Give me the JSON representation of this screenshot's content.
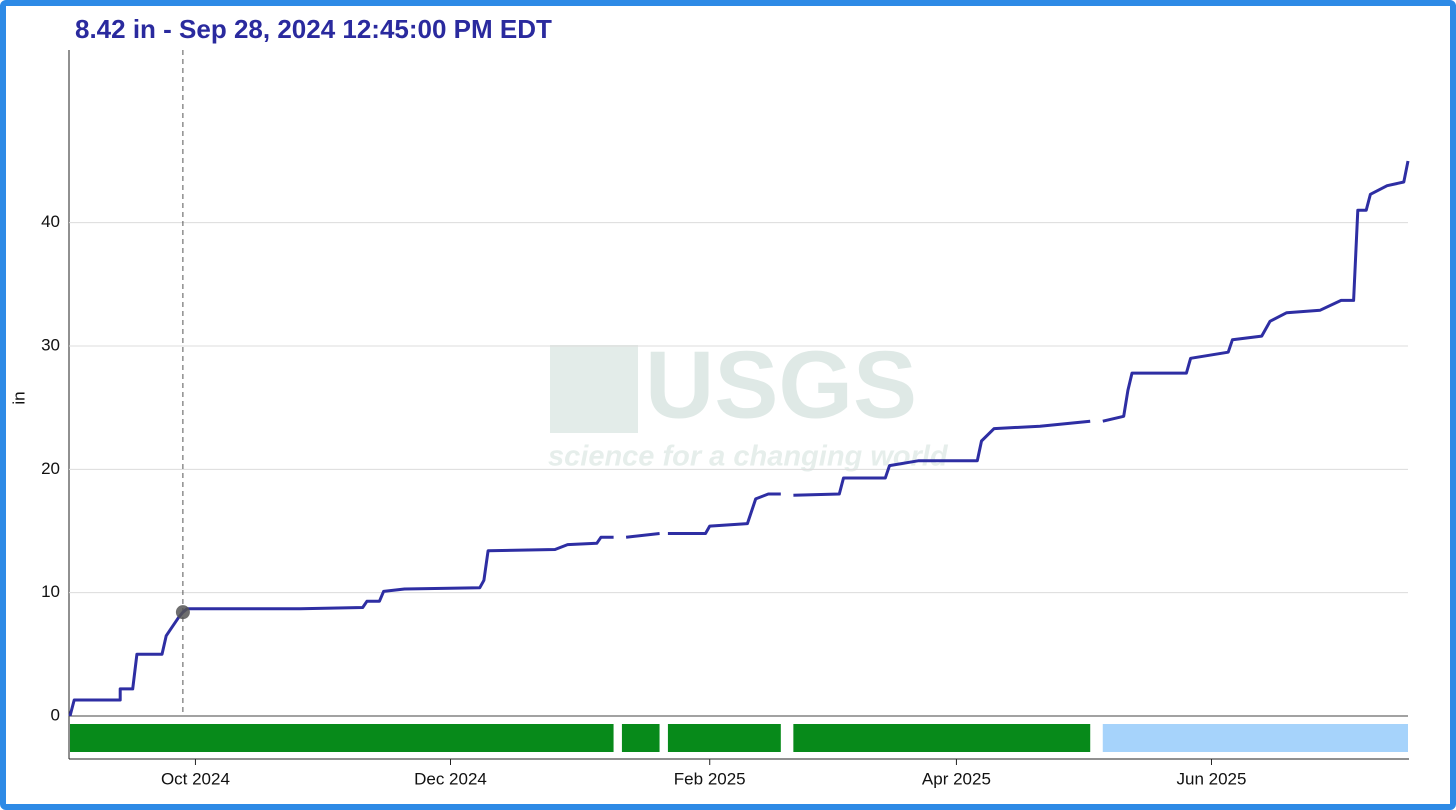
{
  "chart_data": {
    "type": "line",
    "title": "8.42 in - Sep 28, 2024 12:45:00 PM EDT",
    "y_label": "in",
    "watermark": {
      "logo": "USGS",
      "tagline": "science for a changing world"
    },
    "xlim": [
      "2024-09-01",
      "2025-07-18"
    ],
    "xticks": [
      {
        "value": "2024-10-01",
        "label": "Oct 2024"
      },
      {
        "value": "2024-12-01",
        "label": "Dec 2024"
      },
      {
        "value": "2025-02-01",
        "label": "Feb 2025"
      },
      {
        "value": "2025-04-01",
        "label": "Apr 2025"
      },
      {
        "value": "2025-06-01",
        "label": "Jun 2025"
      }
    ],
    "ylim": [
      0,
      54
    ],
    "yticks": [
      0,
      10,
      20,
      30,
      40
    ],
    "grid": true,
    "series": [
      {
        "color": "#2e2ea3",
        "x": [
          "2024-09-01",
          "2024-09-02",
          "2024-09-13",
          "2024-09-13",
          "2024-09-16",
          "2024-09-17",
          "2024-09-23",
          "2024-09-24",
          "2024-09-25",
          "2024-09-27",
          "2024-09-28",
          "2024-09-29",
          "2024-10-26",
          "2024-11-10",
          "2024-11-11",
          "2024-11-14",
          "2024-11-15",
          "2024-11-20",
          "2024-12-08",
          "2024-12-09",
          "2024-12-10",
          "2024-12-26",
          "2024-12-29",
          "2025-01-05",
          "2025-01-06",
          "2025-01-09",
          "2025-01-10",
          "2025-01-12",
          "2025-01-20",
          "2025-01-21",
          "2025-01-22",
          "2025-01-31",
          "2025-02-01",
          "2025-02-10",
          "2025-02-12",
          "2025-02-15",
          "2025-02-18",
          "2025-02-19",
          "2025-02-21",
          "2025-03-04",
          "2025-03-05",
          "2025-03-15",
          "2025-03-16",
          "2025-03-23",
          "2025-04-06",
          "2025-04-07",
          "2025-04-10",
          "2025-04-21",
          "2025-05-03",
          "2025-05-04",
          "2025-05-06",
          "2025-05-11",
          "2025-05-12",
          "2025-05-13",
          "2025-05-26",
          "2025-05-27",
          "2025-06-05",
          "2025-06-06",
          "2025-06-13",
          "2025-06-15",
          "2025-06-19",
          "2025-06-27",
          "2025-07-02",
          "2025-07-05",
          "2025-07-06",
          "2025-07-08",
          "2025-07-09",
          "2025-07-13",
          "2025-07-17",
          "2025-07-18"
        ],
        "values": [
          0,
          1.3,
          1.3,
          2.2,
          2.2,
          5.0,
          5.0,
          6.5,
          7.0,
          8.0,
          8.42,
          8.7,
          8.7,
          8.8,
          9.3,
          9.3,
          10.1,
          10.3,
          10.4,
          11.0,
          13.4,
          13.5,
          13.9,
          14.0,
          14.5,
          14.5,
          null,
          14.5,
          14.8,
          null,
          14.8,
          14.8,
          15.4,
          15.6,
          17.6,
          18.0,
          18.0,
          null,
          17.9,
          18.0,
          19.3,
          19.3,
          20.3,
          20.7,
          20.7,
          22.3,
          23.3,
          23.5,
          23.9,
          null,
          23.9,
          24.3,
          26.4,
          27.8,
          27.8,
          29.0,
          29.5,
          30.5,
          30.8,
          32.0,
          32.7,
          32.9,
          33.7,
          33.7,
          41.0,
          41.0,
          42.3,
          43.0,
          43.3,
          45.0
        ]
      }
    ],
    "highlight": {
      "x": "2024-09-28",
      "y": 8.42,
      "color": "#555555"
    },
    "bands": [
      {
        "start": "2024-09-01",
        "end": "2025-01-09",
        "color": "#078a1a"
      },
      {
        "start": "2025-01-11",
        "end": "2025-01-20",
        "color": "#078a1a"
      },
      {
        "start": "2025-01-22",
        "end": "2025-02-18",
        "color": "#078a1a"
      },
      {
        "start": "2025-02-21",
        "end": "2025-05-03",
        "color": "#078a1a"
      },
      {
        "start": "2025-05-06",
        "end": "2025-07-18",
        "color": "#a6d3fb"
      }
    ]
  }
}
